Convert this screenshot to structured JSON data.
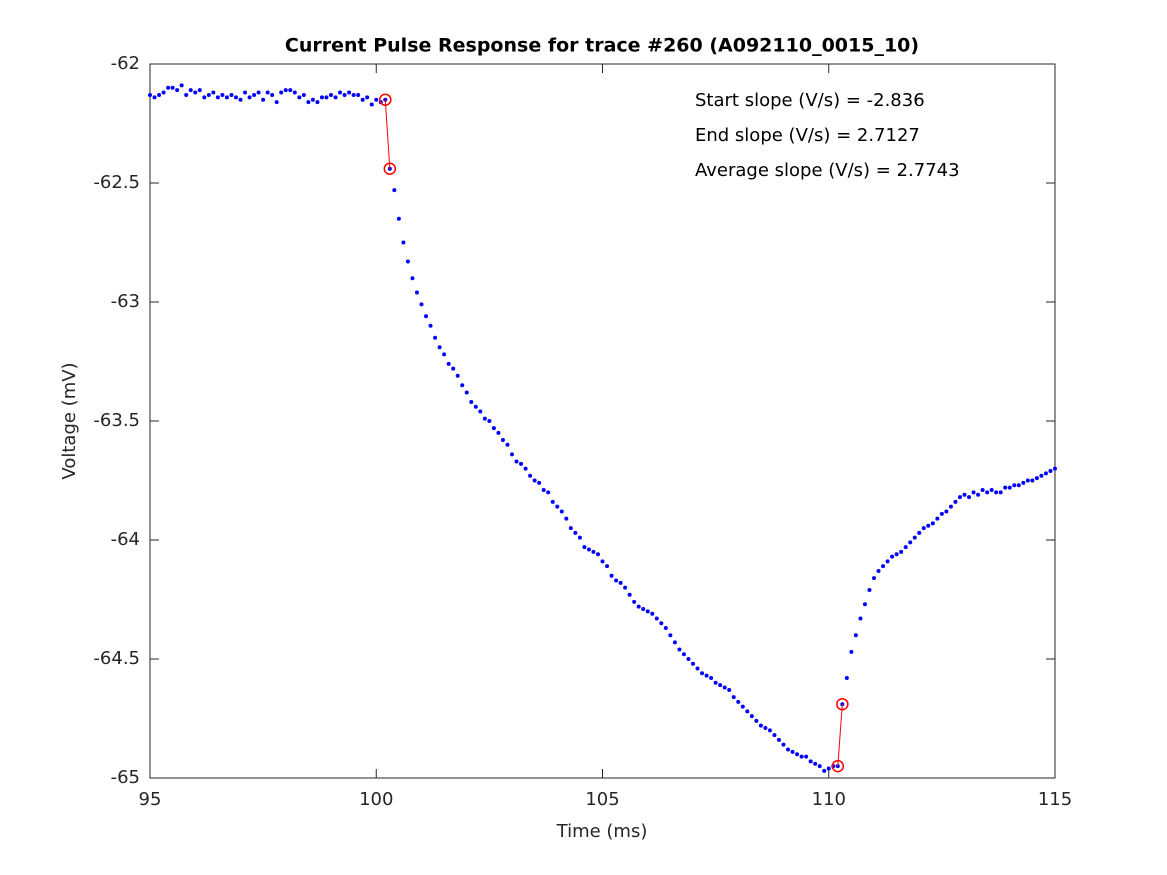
{
  "chart_data": {
    "type": "scatter",
    "title": "Current Pulse Response for trace #260 (A092110_0015_10)",
    "xlabel": "Time (ms)",
    "ylabel": "Voltage (mV)",
    "annotations": [
      "Start slope (V/s) = -2.836",
      "End slope (V/s) = 2.7127",
      "Average slope (V/s) = 2.7743"
    ],
    "xlim": [
      95,
      115
    ],
    "ylim": [
      -65,
      -62
    ],
    "xticks": [
      95,
      100,
      105,
      110,
      115
    ],
    "yticks": [
      -65,
      -64.5,
      -64,
      -63.5,
      -63,
      -62.5,
      -62
    ],
    "series": [
      {
        "color": "#0000ff",
        "marker": "dot",
        "line": false,
        "x": [
          95.0,
          95.1,
          95.2,
          95.3,
          95.4,
          95.5,
          95.6,
          95.7,
          95.8,
          95.9,
          96.0,
          96.1,
          96.2,
          96.3,
          96.4,
          96.5,
          96.6,
          96.7,
          96.8,
          96.9,
          97.0,
          97.1,
          97.2,
          97.3,
          97.4,
          97.5,
          97.6,
          97.7,
          97.8,
          97.9,
          98.0,
          98.1,
          98.2,
          98.3,
          98.4,
          98.5,
          98.6,
          98.7,
          98.8,
          98.9,
          99.0,
          99.1,
          99.2,
          99.3,
          99.4,
          99.5,
          99.6,
          99.7,
          99.8,
          99.9,
          100.0,
          100.1,
          100.2,
          100.3,
          100.4,
          100.5,
          100.6,
          100.7,
          100.8,
          100.9,
          101.0,
          101.1,
          101.2,
          101.3,
          101.4,
          101.5,
          101.6,
          101.7,
          101.8,
          101.9,
          102.0,
          102.1,
          102.2,
          102.3,
          102.4,
          102.5,
          102.6,
          102.7,
          102.8,
          102.9,
          103.0,
          103.1,
          103.2,
          103.3,
          103.4,
          103.5,
          103.6,
          103.7,
          103.8,
          103.9,
          104.0,
          104.1,
          104.2,
          104.3,
          104.4,
          104.5,
          104.6,
          104.7,
          104.8,
          104.9,
          105.0,
          105.1,
          105.2,
          105.3,
          105.4,
          105.5,
          105.6,
          105.7,
          105.8,
          105.9,
          106.0,
          106.1,
          106.2,
          106.3,
          106.4,
          106.5,
          106.6,
          106.7,
          106.8,
          106.9,
          107.0,
          107.1,
          107.2,
          107.3,
          107.4,
          107.5,
          107.6,
          107.7,
          107.8,
          107.9,
          108.0,
          108.1,
          108.2,
          108.3,
          108.4,
          108.5,
          108.6,
          108.7,
          108.8,
          108.9,
          109.0,
          109.1,
          109.2,
          109.3,
          109.4,
          109.5,
          109.6,
          109.7,
          109.8,
          109.9,
          110.0,
          110.1,
          110.2,
          110.3,
          110.4,
          110.5,
          110.6,
          110.7,
          110.8,
          110.9,
          111.0,
          111.1,
          111.2,
          111.3,
          111.4,
          111.5,
          111.6,
          111.7,
          111.8,
          111.9,
          112.0,
          112.1,
          112.2,
          112.3,
          112.4,
          112.5,
          112.6,
          112.7,
          112.8,
          112.9,
          113.0,
          113.1,
          113.2,
          113.3,
          113.4,
          113.5,
          113.6,
          113.7,
          113.8,
          113.9,
          114.0,
          114.1,
          114.2,
          114.3,
          114.4,
          114.5,
          114.6,
          114.7,
          114.8,
          114.9,
          115.0
        ],
        "values": [
          -62.13,
          -62.14,
          -62.13,
          -62.12,
          -62.1,
          -62.1,
          -62.11,
          -62.09,
          -62.13,
          -62.11,
          -62.12,
          -62.11,
          -62.14,
          -62.13,
          -62.12,
          -62.14,
          -62.13,
          -62.14,
          -62.13,
          -62.14,
          -62.15,
          -62.12,
          -62.14,
          -62.13,
          -62.12,
          -62.15,
          -62.12,
          -62.13,
          -62.16,
          -62.12,
          -62.11,
          -62.11,
          -62.12,
          -62.14,
          -62.13,
          -62.16,
          -62.15,
          -62.16,
          -62.14,
          -62.14,
          -62.13,
          -62.14,
          -62.12,
          -62.13,
          -62.12,
          -62.13,
          -62.13,
          -62.15,
          -62.14,
          -62.17,
          -62.15,
          -62.16,
          -62.15,
          -62.44,
          -62.53,
          -62.65,
          -62.75,
          -62.83,
          -62.9,
          -62.96,
          -63.01,
          -63.06,
          -63.1,
          -63.15,
          -63.19,
          -63.22,
          -63.26,
          -63.28,
          -63.31,
          -63.35,
          -63.38,
          -63.42,
          -63.44,
          -63.46,
          -63.49,
          -63.5,
          -63.53,
          -63.55,
          -63.58,
          -63.6,
          -63.64,
          -63.67,
          -63.68,
          -63.7,
          -63.73,
          -63.75,
          -63.76,
          -63.79,
          -63.8,
          -63.84,
          -63.86,
          -63.88,
          -63.91,
          -63.95,
          -63.97,
          -63.99,
          -64.03,
          -64.04,
          -64.05,
          -64.06,
          -64.09,
          -64.11,
          -64.15,
          -64.17,
          -64.18,
          -64.2,
          -64.23,
          -64.26,
          -64.28,
          -64.29,
          -64.3,
          -64.31,
          -64.33,
          -64.35,
          -64.37,
          -64.4,
          -64.43,
          -64.46,
          -64.48,
          -64.5,
          -64.52,
          -64.54,
          -64.56,
          -64.57,
          -64.58,
          -64.6,
          -64.61,
          -64.62,
          -64.63,
          -64.66,
          -64.68,
          -64.7,
          -64.72,
          -64.74,
          -64.76,
          -64.78,
          -64.79,
          -64.8,
          -64.82,
          -64.84,
          -64.86,
          -64.88,
          -64.89,
          -64.9,
          -64.91,
          -64.91,
          -64.93,
          -64.94,
          -64.95,
          -64.97,
          -64.96,
          -64.95,
          -64.95,
          -64.69,
          -64.58,
          -64.47,
          -64.4,
          -64.33,
          -64.27,
          -64.21,
          -64.16,
          -64.13,
          -64.11,
          -64.09,
          -64.07,
          -64.06,
          -64.05,
          -64.03,
          -64.01,
          -63.99,
          -63.97,
          -63.95,
          -63.94,
          -63.93,
          -63.91,
          -63.89,
          -63.88,
          -63.86,
          -63.84,
          -63.82,
          -63.81,
          -63.82,
          -63.8,
          -63.81,
          -63.79,
          -63.8,
          -63.79,
          -63.8,
          -63.8,
          -63.78,
          -63.78,
          -63.77,
          -63.77,
          -63.76,
          -63.75,
          -63.75,
          -63.74,
          -63.73,
          -63.72,
          -63.71,
          -63.7
        ]
      },
      {
        "color": "#ff0000",
        "marker": "circle",
        "line": true,
        "x": [
          100.2,
          100.3
        ],
        "values": [
          -62.15,
          -62.44
        ]
      },
      {
        "color": "#ff0000",
        "marker": "circle",
        "line": true,
        "x": [
          110.2,
          110.3
        ],
        "values": [
          -64.95,
          -64.69
        ]
      }
    ]
  }
}
